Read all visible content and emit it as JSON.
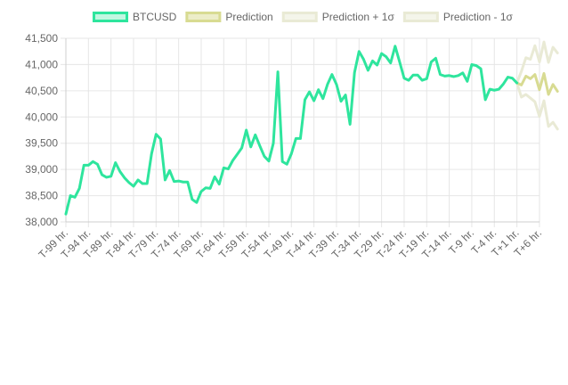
{
  "chart_data": {
    "type": "line",
    "title": "",
    "xlabel": "",
    "ylabel": "",
    "ylim": [
      38000,
      41500
    ],
    "yticks": [
      38000,
      38500,
      39000,
      39500,
      40000,
      40500,
      41000,
      41500
    ],
    "ytick_labels": [
      "38,000",
      "38,500",
      "39,000",
      "39,500",
      "40,000",
      "40,500",
      "41,000",
      "41,500"
    ],
    "grid": true,
    "legend_position": "top",
    "x_categories": [
      "T-99 hr.",
      "T-94 hr.",
      "T-89 hr.",
      "T-84 hr.",
      "T-79 hr.",
      "T-74 hr.",
      "T-69 hr.",
      "T-64 hr.",
      "T-59 hr.",
      "T-54 hr.",
      "T-49 hr.",
      "T-44 hr.",
      "T-39 hr.",
      "T-34 hr.",
      "T-29 hr.",
      "T-24 hr.",
      "T-19 hr.",
      "T-14 hr.",
      "T-9 hr.",
      "T-4 hr.",
      "T+1 hr.",
      "T+6 hr."
    ],
    "x_label_step": 5,
    "series": [
      {
        "name": "BTCUSD",
        "color": "#2ee59d",
        "fill": "#c2f7e1",
        "start_index": 0,
        "values": [
          38150,
          38500,
          38470,
          38640,
          39080,
          39080,
          39150,
          39100,
          38900,
          38850,
          38870,
          39130,
          38960,
          38840,
          38750,
          38680,
          38800,
          38730,
          38730,
          39300,
          39670,
          39580,
          38800,
          38980,
          38770,
          38780,
          38760,
          38760,
          38430,
          38370,
          38580,
          38650,
          38640,
          38860,
          38720,
          39030,
          39010,
          39170,
          39290,
          39410,
          39750,
          39430,
          39660,
          39450,
          39250,
          39160,
          39500,
          40860,
          39150,
          39100,
          39300,
          39590,
          39590,
          40330,
          40480,
          40310,
          40520,
          40350,
          40620,
          40810,
          40620,
          40300,
          40420,
          39860,
          40850,
          41250,
          41100,
          40890,
          41070,
          40990,
          41210,
          41150,
          41030,
          41350,
          41050,
          40740,
          40700,
          40800,
          40800,
          40700,
          40730,
          41050,
          41120,
          40810,
          40780,
          40790,
          40770,
          40790,
          40840,
          40680,
          41000,
          40980,
          40920,
          40330,
          40530,
          40510,
          40530,
          40630,
          40760,
          40740,
          40650
        ]
      },
      {
        "name": "Prediction",
        "color": "#d8db92",
        "fill": "#ecedc8",
        "start_index": 100,
        "values": [
          40650,
          40610,
          40780,
          40730,
          40810,
          40520,
          40830,
          40430,
          40620,
          40490
        ]
      },
      {
        "name": "Prediction + 1σ",
        "color": "#e9ead5",
        "fill": "#f4f5ea",
        "start_index": 100,
        "values": [
          40650,
          40870,
          41130,
          41100,
          41360,
          41050,
          41430,
          41040,
          41330,
          41220
        ]
      },
      {
        "name": "Prediction - 1σ",
        "color": "#e9ead5",
        "fill": "#f4f5ea",
        "start_index": 100,
        "values": [
          40650,
          40380,
          40430,
          40360,
          40290,
          40010,
          40310,
          39820,
          39900,
          39770
        ]
      }
    ]
  }
}
